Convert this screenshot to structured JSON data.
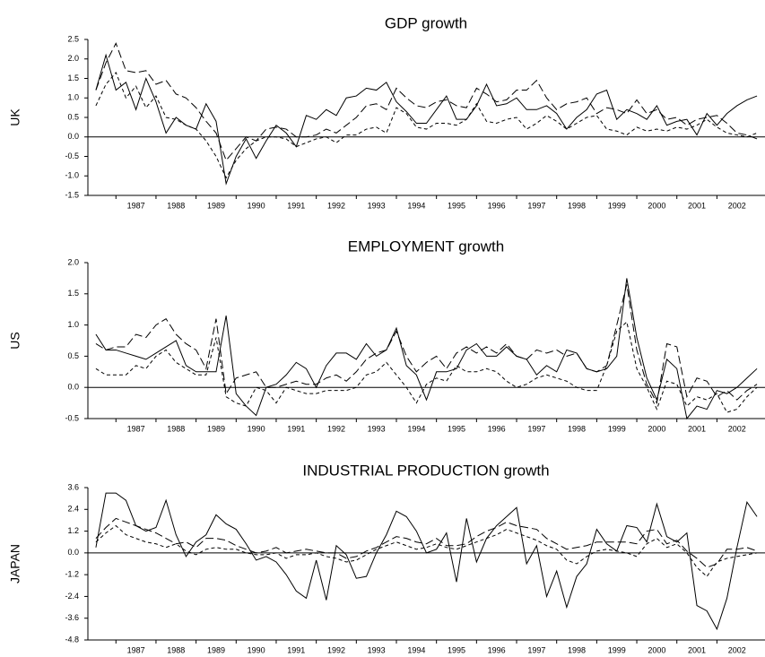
{
  "chart_data": [
    {
      "type": "line",
      "title": "GDP growth",
      "ylabel": "UK",
      "x": [
        1986.5,
        1986.75,
        1987,
        1987.25,
        1987.5,
        1987.75,
        1988,
        1988.25,
        1988.5,
        1988.75,
        1989,
        1989.25,
        1989.5,
        1989.75,
        1990,
        1990.25,
        1990.5,
        1990.75,
        1991,
        1991.25,
        1991.5,
        1991.75,
        1992,
        1992.25,
        1992.5,
        1992.75,
        1993,
        1993.25,
        1993.5,
        1993.75,
        1994,
        1994.25,
        1994.5,
        1994.75,
        1995,
        1995.25,
        1995.5,
        1995.75,
        1996,
        1996.25,
        1996.5,
        1996.75,
        1997,
        1997.25,
        1997.5,
        1997.75,
        1998,
        1998.25,
        1998.5,
        1998.75,
        1999,
        1999.25,
        1999.5,
        1999.75,
        2000,
        2000.25,
        2000.5,
        2000.75,
        2001,
        2001.25,
        2001.5,
        2001.75,
        2002,
        2002.25,
        2002.5,
        2002.75,
        2003
      ],
      "series": [
        {
          "color": "#000000",
          "dash": "solid",
          "values": [
            1.2,
            2.1,
            1.2,
            1.4,
            0.7,
            1.5,
            0.9,
            0.1,
            0.5,
            0.3,
            0.2,
            0.85,
            0.4,
            -1.2,
            -0.5,
            -0.05,
            -0.55,
            -0.1,
            0.3,
            0.1,
            -0.25,
            0.55,
            0.45,
            0.7,
            0.55,
            1.0,
            1.05,
            1.25,
            1.2,
            1.4,
            0.9,
            0.65,
            0.35,
            0.35,
            0.7,
            1.05,
            0.45,
            0.45,
            0.8,
            1.35,
            0.8,
            0.85,
            1.0,
            0.7,
            0.7,
            0.8,
            0.6,
            0.2,
            0.5,
            0.7,
            1.1,
            1.2,
            0.45,
            0.7,
            0.6,
            0.45,
            0.8,
            0.3,
            0.4,
            0.45,
            0.05,
            0.6,
            0.3,
            0.6,
            0.8,
            0.95,
            1.05
          ]
        },
        {
          "color": "#000000",
          "dash": "long",
          "values": [
            1.2,
            1.9,
            2.4,
            1.7,
            1.65,
            1.7,
            1.35,
            1.45,
            1.1,
            1.0,
            0.75,
            0.4,
            0.1,
            -0.6,
            -0.3,
            0.0,
            -0.1,
            0.2,
            0.25,
            0.2,
            0.0,
            0.0,
            0.05,
            0.2,
            0.1,
            0.3,
            0.5,
            0.8,
            0.85,
            0.7,
            1.25,
            1.0,
            0.8,
            0.75,
            0.9,
            0.95,
            0.8,
            0.75,
            1.25,
            1.1,
            0.9,
            0.95,
            1.2,
            1.2,
            1.45,
            1.0,
            0.7,
            0.85,
            0.9,
            1.0,
            0.6,
            0.75,
            0.7,
            0.6,
            0.95,
            0.6,
            0.7,
            0.45,
            0.5,
            0.3,
            0.45,
            0.5,
            0.55,
            0.35,
            0.1,
            0.05,
            -0.05
          ]
        },
        {
          "color": "#000000",
          "dash": "short",
          "values": [
            0.8,
            1.35,
            1.65,
            1.0,
            1.3,
            0.75,
            1.05,
            0.5,
            0.45,
            0.3,
            0.2,
            -0.1,
            -0.5,
            -1.05,
            -0.6,
            -0.3,
            -0.1,
            0.0,
            0.0,
            -0.05,
            -0.25,
            -0.15,
            -0.05,
            0.0,
            -0.15,
            0.05,
            0.05,
            0.2,
            0.25,
            0.1,
            0.75,
            0.6,
            0.25,
            0.2,
            0.35,
            0.35,
            0.3,
            0.45,
            0.85,
            0.4,
            0.35,
            0.45,
            0.5,
            0.2,
            0.35,
            0.55,
            0.4,
            0.2,
            0.35,
            0.5,
            0.55,
            0.2,
            0.15,
            0.05,
            0.25,
            0.15,
            0.2,
            0.15,
            0.25,
            0.2,
            0.3,
            0.45,
            0.25,
            0.1,
            0.05,
            0.0,
            0.1
          ]
        }
      ],
      "xlim": [
        1986.3,
        2003.2
      ],
      "xticks": [
        1987,
        1988,
        1989,
        1990,
        1991,
        1992,
        1993,
        1994,
        1995,
        1996,
        1997,
        1998,
        1999,
        2000,
        2001,
        2002
      ],
      "ylim": [
        -1.5,
        2.5
      ],
      "yticks": [
        2.5,
        {
          "value": 2,
          "label": "2.0"
        },
        1.5,
        {
          "value": 1,
          "label": "1.0"
        },
        0.5,
        {
          "value": 0,
          "label": "0.0"
        },
        -0.5,
        {
          "value": -1,
          "label": "-1.0"
        },
        -1.5
      ]
    },
    {
      "type": "line",
      "title": "EMPLOYMENT growth",
      "ylabel": "US",
      "x": [
        1986.5,
        1986.75,
        1987,
        1987.25,
        1987.5,
        1987.75,
        1988,
        1988.25,
        1988.5,
        1988.75,
        1989,
        1989.25,
        1989.5,
        1989.75,
        1990,
        1990.25,
        1990.5,
        1990.75,
        1991,
        1991.25,
        1991.5,
        1991.75,
        1992,
        1992.25,
        1992.5,
        1992.75,
        1993,
        1993.25,
        1993.5,
        1993.75,
        1994,
        1994.25,
        1994.5,
        1994.75,
        1995,
        1995.25,
        1995.5,
        1995.75,
        1996,
        1996.25,
        1996.5,
        1996.75,
        1997,
        1997.25,
        1997.5,
        1997.75,
        1998,
        1998.25,
        1998.5,
        1998.75,
        1999,
        1999.25,
        1999.5,
        1999.75,
        2000,
        2000.25,
        2000.5,
        2000.75,
        2001,
        2001.25,
        2001.5,
        2001.75,
        2002,
        2002.25,
        2002.5,
        2002.75,
        2003
      ],
      "series": [
        {
          "color": "#000000",
          "dash": "solid",
          "values": [
            0.85,
            0.6,
            0.6,
            0.55,
            0.5,
            0.45,
            0.55,
            0.65,
            0.75,
            0.35,
            0.25,
            0.25,
            0.25,
            1.15,
            -0.1,
            -0.3,
            -0.45,
            0.0,
            0.05,
            0.2,
            0.4,
            0.3,
            0.0,
            0.35,
            0.55,
            0.55,
            0.45,
            0.7,
            0.5,
            0.6,
            0.95,
            0.35,
            0.2,
            -0.2,
            0.25,
            0.25,
            0.3,
            0.6,
            0.7,
            0.5,
            0.5,
            0.65,
            0.5,
            0.45,
            0.2,
            0.35,
            0.25,
            0.6,
            0.55,
            0.3,
            0.25,
            0.3,
            0.5,
            1.75,
            0.8,
            0.15,
            -0.2,
            0.45,
            0.3,
            -0.5,
            -0.3,
            -0.35,
            -0.05,
            -0.1,
            0.0,
            0.15,
            0.3
          ]
        },
        {
          "color": "#000000",
          "dash": "long",
          "values": [
            0.7,
            0.6,
            0.65,
            0.65,
            0.85,
            0.8,
            1.0,
            1.1,
            0.85,
            0.7,
            0.6,
            0.3,
            1.1,
            -0.1,
            0.15,
            0.2,
            0.25,
            0.0,
            0.0,
            0.05,
            0.1,
            0.05,
            0.05,
            0.15,
            0.2,
            0.1,
            0.25,
            0.45,
            0.55,
            0.6,
            0.9,
            0.5,
            0.25,
            0.4,
            0.5,
            0.3,
            0.55,
            0.65,
            0.55,
            0.65,
            0.55,
            0.7,
            0.5,
            0.45,
            0.6,
            0.55,
            0.6,
            0.5,
            0.55,
            0.3,
            0.25,
            0.35,
            1.0,
            1.65,
            0.6,
            0.05,
            -0.25,
            0.7,
            0.65,
            -0.15,
            0.15,
            0.1,
            -0.15,
            -0.05,
            -0.2,
            -0.05,
            0.05
          ]
        },
        {
          "color": "#000000",
          "dash": "short",
          "values": [
            0.3,
            0.2,
            0.2,
            0.2,
            0.35,
            0.3,
            0.5,
            0.6,
            0.4,
            0.3,
            0.2,
            0.2,
            0.8,
            -0.15,
            -0.25,
            -0.3,
            0.0,
            -0.05,
            -0.25,
            0.0,
            -0.05,
            -0.1,
            -0.1,
            -0.05,
            -0.05,
            -0.05,
            0.0,
            0.2,
            0.25,
            0.4,
            0.2,
            0.0,
            -0.25,
            0.05,
            0.15,
            0.1,
            0.35,
            0.25,
            0.25,
            0.3,
            0.25,
            0.1,
            0.0,
            0.05,
            0.15,
            0.2,
            0.15,
            0.1,
            0.0,
            -0.05,
            -0.05,
            0.35,
            0.9,
            1.05,
            0.3,
            0.0,
            -0.35,
            0.1,
            0.05,
            -0.3,
            -0.15,
            -0.2,
            -0.1,
            -0.4,
            -0.35,
            -0.15,
            0.0
          ]
        }
      ],
      "xlim": [
        1986.3,
        2003.2
      ],
      "xticks": [
        1987,
        1988,
        1989,
        1990,
        1991,
        1992,
        1993,
        1994,
        1995,
        1996,
        1997,
        1998,
        1999,
        2000,
        2001,
        2002
      ],
      "ylim": [
        -0.5,
        2.0
      ],
      "yticks": [
        {
          "value": 2,
          "label": "2.0"
        },
        1.5,
        {
          "value": 1,
          "label": "1.0"
        },
        0.5,
        {
          "value": 0,
          "label": "0.0"
        },
        -0.5
      ]
    },
    {
      "type": "line",
      "title": "INDUSTRIAL PRODUCTION growth",
      "ylabel": "JAPAN",
      "x": [
        1986.5,
        1986.75,
        1987,
        1987.25,
        1987.5,
        1987.75,
        1988,
        1988.25,
        1988.5,
        1988.75,
        1989,
        1989.25,
        1989.5,
        1989.75,
        1990,
        1990.25,
        1990.5,
        1990.75,
        1991,
        1991.25,
        1991.5,
        1991.75,
        1992,
        1992.25,
        1992.5,
        1992.75,
        1993,
        1993.25,
        1993.5,
        1993.75,
        1994,
        1994.25,
        1994.5,
        1994.75,
        1995,
        1995.25,
        1995.5,
        1995.75,
        1996,
        1996.25,
        1996.5,
        1996.75,
        1997,
        1997.25,
        1997.5,
        1997.75,
        1998,
        1998.25,
        1998.5,
        1998.75,
        1999,
        1999.25,
        1999.5,
        1999.75,
        2000,
        2000.25,
        2000.5,
        2000.75,
        2001,
        2001.25,
        2001.5,
        2001.75,
        2002,
        2002.25,
        2002.5,
        2002.75,
        2003
      ],
      "series": [
        {
          "color": "#000000",
          "dash": "solid",
          "values": [
            0.3,
            3.3,
            3.3,
            2.9,
            1.5,
            1.2,
            1.4,
            2.9,
            1.0,
            -0.2,
            0.6,
            1.0,
            2.1,
            1.6,
            1.3,
            0.5,
            -0.4,
            -0.2,
            -0.5,
            -1.2,
            -2.1,
            -2.5,
            -0.4,
            -2.6,
            0.4,
            -0.1,
            -1.4,
            -1.3,
            0.0,
            1.0,
            2.3,
            2.0,
            1.2,
            0.0,
            0.2,
            1.1,
            -1.6,
            1.9,
            -0.5,
            0.8,
            1.5,
            2.0,
            2.5,
            -0.6,
            0.4,
            -2.4,
            -1.0,
            -3.0,
            -1.3,
            -0.6,
            1.3,
            0.5,
            0.1,
            1.5,
            1.4,
            0.6,
            2.7,
            0.9,
            0.6,
            1.1,
            -2.9,
            -3.2,
            -4.2,
            -2.5,
            0.3,
            2.8,
            2.0
          ]
        },
        {
          "color": "#000000",
          "dash": "long",
          "values": [
            0.8,
            1.4,
            1.9,
            1.7,
            1.5,
            1.3,
            1.1,
            0.8,
            0.5,
            0.6,
            0.3,
            0.8,
            0.8,
            0.7,
            0.4,
            0.2,
            0.0,
            0.1,
            0.3,
            0.0,
            0.1,
            0.2,
            0.1,
            0.0,
            0.0,
            -0.3,
            -0.2,
            0.1,
            0.3,
            0.6,
            0.9,
            0.8,
            0.6,
            0.5,
            0.8,
            0.4,
            0.4,
            0.5,
            0.9,
            1.2,
            1.4,
            1.7,
            1.5,
            1.4,
            1.3,
            0.8,
            0.5,
            0.2,
            0.3,
            0.4,
            0.6,
            0.6,
            0.6,
            0.6,
            0.5,
            1.2,
            1.3,
            0.5,
            0.7,
            0.1,
            -0.3,
            -0.8,
            -0.6,
            0.2,
            0.2,
            0.3,
            0.1
          ]
        },
        {
          "color": "#000000",
          "dash": "short",
          "values": [
            0.6,
            1.1,
            1.5,
            1.0,
            0.8,
            0.6,
            0.5,
            0.3,
            0.5,
            0.1,
            -0.1,
            0.2,
            0.3,
            0.2,
            0.2,
            0.0,
            -0.1,
            -0.1,
            0.0,
            -0.3,
            -0.1,
            -0.1,
            0.0,
            -0.2,
            -0.3,
            -0.5,
            -0.4,
            -0.1,
            0.2,
            0.4,
            0.6,
            0.4,
            0.2,
            0.3,
            0.5,
            0.3,
            0.2,
            0.4,
            0.6,
            0.8,
            1.0,
            1.3,
            1.1,
            0.9,
            0.7,
            0.4,
            0.2,
            -0.4,
            -0.6,
            -0.2,
            0.1,
            0.2,
            0.1,
            0.0,
            -0.2,
            0.5,
            0.8,
            0.3,
            0.5,
            0.0,
            -0.8,
            -1.3,
            -0.5,
            -0.3,
            -0.2,
            -0.1,
            0.0
          ]
        }
      ],
      "xlim": [
        1986.3,
        2003.2
      ],
      "xticks": [
        1987,
        1988,
        1989,
        1990,
        1991,
        1992,
        1993,
        1994,
        1995,
        1996,
        1997,
        1998,
        1999,
        2000,
        2001,
        2002
      ],
      "ylim": [
        -4.8,
        3.6
      ],
      "yticks": [
        3.6,
        2.4,
        1.2,
        {
          "value": 0,
          "label": "0.0"
        },
        -1.2,
        -2.4,
        -3.6,
        -4.8
      ]
    }
  ]
}
